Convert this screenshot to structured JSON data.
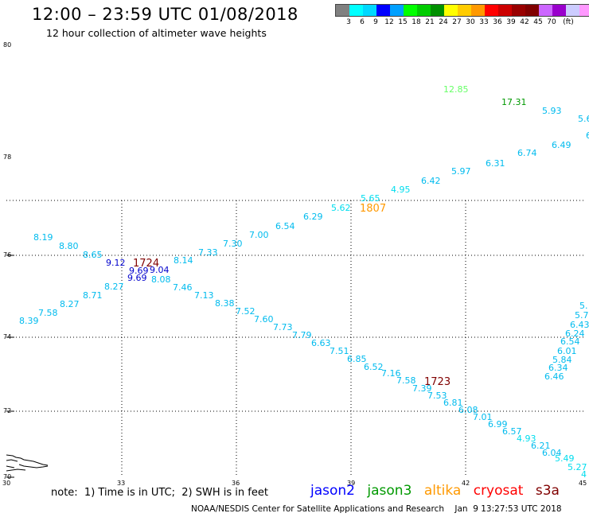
{
  "header": {
    "title": "12:00 – 23:59 UTC 01/08/2018",
    "subtitle": "12 hour collection of altimeter wave heights"
  },
  "legend": {
    "unit": "(ft)",
    "colors": [
      "#808080",
      "#00ffff",
      "#00d8ff",
      "#0000ff",
      "#00a0ff",
      "#00ff00",
      "#00cc00",
      "#009000",
      "#ffff00",
      "#ffcc00",
      "#ff9900",
      "#ff0000",
      "#cc0000",
      "#990000",
      "#800000",
      "#cc66ff",
      "#9900cc",
      "#ccccff",
      "#ff99ff",
      "#000000"
    ],
    "labels": [
      "3",
      "6",
      "9",
      "12",
      "15",
      "18",
      "21",
      "24",
      "27",
      "30",
      "33",
      "36",
      "39",
      "42",
      "45",
      "70"
    ]
  },
  "axes": {
    "lat_labels": [
      "80",
      "78",
      "76",
      "74",
      "72",
      "70"
    ],
    "lon_labels": [
      "30",
      "33",
      "36",
      "39",
      "42",
      "45"
    ]
  },
  "observations": [
    {
      "t": "12.85",
      "c": "#66ff66"
    },
    {
      "t": "17.31",
      "c": "#009900"
    },
    {
      "t": "5.93",
      "c": "#00bbee"
    },
    {
      "t": "5.6",
      "c": "#00bbee"
    },
    {
      "t": "6",
      "c": "#00bbee"
    },
    {
      "t": "6.74",
      "c": "#00bbee"
    },
    {
      "t": "6.49",
      "c": "#00bbee"
    },
    {
      "t": "6.31",
      "c": "#00bbee"
    },
    {
      "t": "5.97",
      "c": "#00bbee"
    },
    {
      "t": "6.42",
      "c": "#00bbee"
    },
    {
      "t": "4.95",
      "c": "#00ddee"
    },
    {
      "t": "5.65",
      "c": "#00ddee"
    },
    {
      "t": "5.62",
      "c": "#00ddee"
    },
    {
      "t": "6.29",
      "c": "#00bbee"
    },
    {
      "t": "6.54",
      "c": "#00bbee"
    },
    {
      "t": "7.00",
      "c": "#00bbee"
    },
    {
      "t": "7.30",
      "c": "#00bbee"
    },
    {
      "t": "7.33",
      "c": "#00bbee"
    },
    {
      "t": "8.14",
      "c": "#00bbee"
    },
    {
      "t": "8.19",
      "c": "#00bbee"
    },
    {
      "t": "8.80",
      "c": "#00bbee"
    },
    {
      "t": "8.65",
      "c": "#00bbee"
    },
    {
      "t": "9.12",
      "c": "#0000cc"
    },
    {
      "t": "9.69",
      "c": "#0000cc"
    },
    {
      "t": "9.04",
      "c": "#0000cc"
    },
    {
      "t": "9.69",
      "c": "#0000cc"
    },
    {
      "t": "8.08",
      "c": "#00bbee"
    },
    {
      "t": "8.27",
      "c": "#00bbee"
    },
    {
      "t": "7.46",
      "c": "#00bbee"
    },
    {
      "t": "8.71",
      "c": "#00bbee"
    },
    {
      "t": "7.13",
      "c": "#00bbee"
    },
    {
      "t": "8.27",
      "c": "#00bbee"
    },
    {
      "t": "8.38",
      "c": "#00bbee"
    },
    {
      "t": "7.58",
      "c": "#00bbee"
    },
    {
      "t": "7.52",
      "c": "#00bbee"
    },
    {
      "t": "8.39",
      "c": "#00bbee"
    },
    {
      "t": "7.60",
      "c": "#00bbee"
    },
    {
      "t": "7.73",
      "c": "#00bbee"
    },
    {
      "t": "7.79",
      "c": "#00bbee"
    },
    {
      "t": "6.63",
      "c": "#00bbee"
    },
    {
      "t": "7.51",
      "c": "#00bbee"
    },
    {
      "t": "6.85",
      "c": "#00bbee"
    },
    {
      "t": "6.52",
      "c": "#00bbee"
    },
    {
      "t": "7.16",
      "c": "#00bbee"
    },
    {
      "t": "7.58",
      "c": "#00bbee"
    },
    {
      "t": "7.39",
      "c": "#00bbee"
    },
    {
      "t": "7.53",
      "c": "#00bbee"
    },
    {
      "t": "6.81",
      "c": "#00bbee"
    },
    {
      "t": "6.08",
      "c": "#00bbee"
    },
    {
      "t": "7.01",
      "c": "#00bbee"
    },
    {
      "t": "6.99",
      "c": "#00bbee"
    },
    {
      "t": "6.57",
      "c": "#00bbee"
    },
    {
      "t": "4.93",
      "c": "#00ddee"
    },
    {
      "t": "6.21",
      "c": "#00bbee"
    },
    {
      "t": "6.04",
      "c": "#00bbee"
    },
    {
      "t": "5.49",
      "c": "#00ddee"
    },
    {
      "t": "5.27",
      "c": "#00ddee"
    },
    {
      "t": "4",
      "c": "#00ddee"
    },
    {
      "t": "5.",
      "c": "#00bbee"
    },
    {
      "t": "5.7",
      "c": "#00bbee"
    },
    {
      "t": "6.43",
      "c": "#00bbee"
    },
    {
      "t": "6.24",
      "c": "#00bbee"
    },
    {
      "t": "6.54",
      "c": "#00bbee"
    },
    {
      "t": "6.01",
      "c": "#00bbee"
    },
    {
      "t": "5.84",
      "c": "#00bbee"
    },
    {
      "t": "6.34",
      "c": "#00bbee"
    },
    {
      "t": "6.46",
      "c": "#00bbee"
    }
  ],
  "pass_times": [
    {
      "t": "1724",
      "c": "#800000"
    },
    {
      "t": "1807",
      "c": "#ff9900"
    },
    {
      "t": "1723",
      "c": "#800000"
    }
  ],
  "note": "note:  1) Time is in UTC;  2) SWH is in feet",
  "satellites": [
    {
      "name": "jason2",
      "color": "#0000ff"
    },
    {
      "name": "jason3",
      "color": "#009900"
    },
    {
      "name": "altika",
      "color": "#ff9900"
    },
    {
      "name": "cryosat",
      "color": "#ff0000"
    },
    {
      "name": "s3a",
      "color": "#800000"
    }
  ],
  "footer": "NOAA/NESDIS Center for Satellite Applications and Research    Jan  9 13:27:53 UTC 2018"
}
